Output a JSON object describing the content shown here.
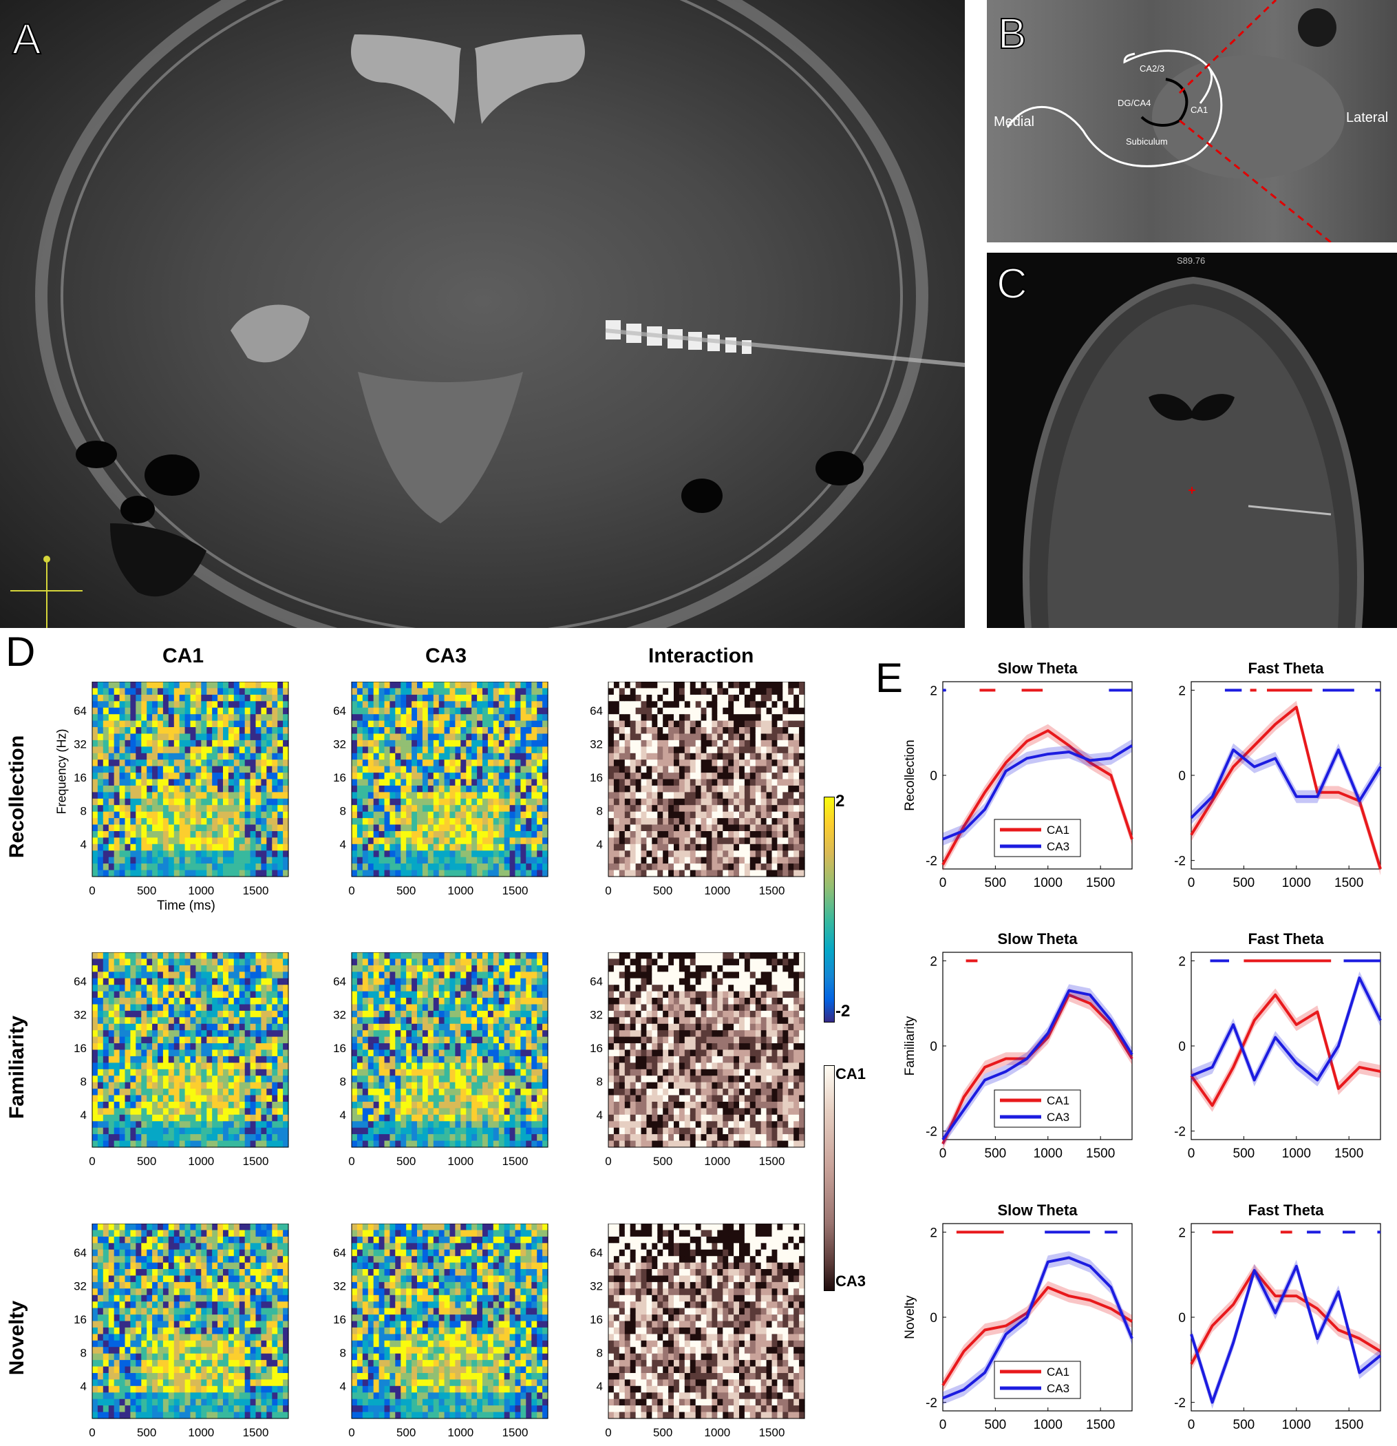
{
  "panels": {
    "A": {
      "letter": "A"
    },
    "B": {
      "letter": "B",
      "labels": {
        "medial": "Medial",
        "lateral": "Lateral",
        "ca23": "CA2/3",
        "dgca4": "DG/CA4",
        "ca1": "CA1",
        "subiculum": "Subiculum"
      }
    },
    "C": {
      "letter": "C",
      "readout": "S89.76"
    },
    "D": {
      "letter": "D"
    },
    "E": {
      "letter": "E"
    }
  },
  "d_panel": {
    "column_titles": [
      "CA1",
      "CA3",
      "Interaction"
    ],
    "row_titles": [
      "Recollection",
      "Familiarity",
      "Novelty"
    ],
    "ylabel": "Frequency (Hz)",
    "xlabel": "Time (ms)",
    "yticks": [
      "64",
      "32",
      "16",
      "8",
      "4"
    ],
    "xticks": [
      "0",
      "500",
      "1000",
      "1500"
    ],
    "colorbar1": {
      "max": "2",
      "min": "-2"
    },
    "colorbar2": {
      "top": "CA1",
      "bottom": "CA3"
    },
    "colors": {
      "parula": [
        "#352a87",
        "#0363e1",
        "#1485d4",
        "#06a7c6",
        "#38b99e",
        "#92bf73",
        "#d9ba56",
        "#fcce2e",
        "#f9fb0e"
      ],
      "pink": [
        "#1e0c0c",
        "#5a3a38",
        "#9a7470",
        "#c9a39a",
        "#e6cfc2",
        "#fffcf3"
      ]
    }
  },
  "chart_data": [
    {
      "type": "line",
      "title": "Slow Theta",
      "ylabel": "Recollection",
      "xlim": [
        0,
        1800
      ],
      "ylim": [
        -2.2,
        2.2
      ],
      "xticks": [
        "0",
        "500",
        "1000",
        "1500"
      ],
      "yticks": [
        "2",
        "0",
        "-2"
      ],
      "legend": [
        "CA1",
        "CA3"
      ],
      "legend_position": "bottom-center",
      "x": [
        0,
        200,
        400,
        600,
        800,
        1000,
        1200,
        1400,
        1600,
        1800
      ],
      "series": [
        {
          "name": "CA1",
          "color": "#e8191c",
          "values": [
            -2.1,
            -1.2,
            -0.4,
            0.3,
            0.8,
            1.05,
            0.7,
            0.3,
            0.0,
            -1.5
          ]
        },
        {
          "name": "CA3",
          "color": "#1c1ce0",
          "values": [
            -1.5,
            -1.3,
            -0.8,
            0.1,
            0.4,
            0.5,
            0.55,
            0.35,
            0.4,
            0.7
          ]
        }
      ],
      "sig_bars": [
        {
          "color": "red",
          "ranges": [
            [
              350,
              500
            ],
            [
              750,
              950
            ]
          ]
        },
        {
          "color": "blue",
          "ranges": [
            [
              0,
              30
            ],
            [
              1580,
              1800
            ]
          ]
        }
      ]
    },
    {
      "type": "line",
      "title": "Fast Theta",
      "ylabel": "",
      "xlim": [
        0,
        1800
      ],
      "ylim": [
        -2.2,
        2.2
      ],
      "xticks": [
        "0",
        "500",
        "1000",
        "1500"
      ],
      "yticks": [
        "2",
        "0",
        "-2"
      ],
      "x": [
        0,
        200,
        400,
        600,
        800,
        1000,
        1200,
        1400,
        1600,
        1800
      ],
      "series": [
        {
          "name": "CA1",
          "color": "#e8191c",
          "values": [
            -1.4,
            -0.6,
            0.2,
            0.7,
            1.2,
            1.6,
            -0.4,
            -0.4,
            -0.6,
            -2.2
          ]
        },
        {
          "name": "CA3",
          "color": "#1c1ce0",
          "values": [
            -1.0,
            -0.5,
            0.6,
            0.2,
            0.4,
            -0.5,
            -0.5,
            0.6,
            -0.6,
            0.2
          ]
        }
      ],
      "sig_bars": [
        {
          "color": "red",
          "ranges": [
            [
              560,
              620
            ],
            [
              720,
              1150
            ]
          ]
        },
        {
          "color": "blue",
          "ranges": [
            [
              320,
              480
            ],
            [
              1250,
              1550
            ],
            [
              1750,
              1800
            ]
          ]
        }
      ]
    },
    {
      "type": "line",
      "title": "Slow Theta",
      "ylabel": "Familiarity",
      "xlim": [
        0,
        1800
      ],
      "ylim": [
        -2.2,
        2.2
      ],
      "xticks": [
        "0",
        "500",
        "1000",
        "1500"
      ],
      "yticks": [
        "2",
        "0",
        "-2"
      ],
      "legend": [
        "CA1",
        "CA3"
      ],
      "legend_position": "bottom-center",
      "x": [
        0,
        200,
        400,
        600,
        800,
        1000,
        1200,
        1400,
        1600,
        1800
      ],
      "series": [
        {
          "name": "CA1",
          "color": "#e8191c",
          "values": [
            -2.3,
            -1.2,
            -0.5,
            -0.3,
            -0.3,
            0.2,
            1.2,
            1.0,
            0.5,
            -0.3
          ]
        },
        {
          "name": "CA3",
          "color": "#1c1ce0",
          "values": [
            -2.2,
            -1.5,
            -0.8,
            -0.6,
            -0.3,
            0.3,
            1.3,
            1.2,
            0.6,
            -0.2
          ]
        }
      ],
      "sig_bars": [
        {
          "color": "red",
          "ranges": [
            [
              220,
              330
            ]
          ]
        }
      ]
    },
    {
      "type": "line",
      "title": "Fast Theta",
      "ylabel": "",
      "xlim": [
        0,
        1800
      ],
      "ylim": [
        -2.2,
        2.2
      ],
      "xticks": [
        "0",
        "500",
        "1000",
        "1500"
      ],
      "yticks": [
        "2",
        "0",
        "-2"
      ],
      "x": [
        0,
        200,
        400,
        600,
        800,
        1000,
        1200,
        1400,
        1600,
        1800
      ],
      "series": [
        {
          "name": "CA1",
          "color": "#e8191c",
          "values": [
            -0.7,
            -1.4,
            -0.5,
            0.6,
            1.2,
            0.5,
            0.8,
            -1.0,
            -0.5,
            -0.6
          ]
        },
        {
          "name": "CA3",
          "color": "#1c1ce0",
          "values": [
            -0.7,
            -0.5,
            0.5,
            -0.8,
            0.2,
            -0.4,
            -0.8,
            0.0,
            1.6,
            0.6
          ]
        }
      ],
      "sig_bars": [
        {
          "color": "red",
          "ranges": [
            [
              500,
              1330
            ]
          ]
        },
        {
          "color": "blue",
          "ranges": [
            [
              180,
              360
            ],
            [
              1450,
              1800
            ]
          ]
        }
      ]
    },
    {
      "type": "line",
      "title": "Slow Theta",
      "ylabel": "Novelty",
      "xlim": [
        0,
        1800
      ],
      "ylim": [
        -2.2,
        2.2
      ],
      "xticks": [
        "0",
        "500",
        "1000",
        "1500"
      ],
      "yticks": [
        "2",
        "0",
        "-2"
      ],
      "legend": [
        "CA1",
        "CA3"
      ],
      "legend_position": "bottom-center",
      "x": [
        0,
        200,
        400,
        600,
        800,
        1000,
        1200,
        1400,
        1600,
        1800
      ],
      "series": [
        {
          "name": "CA1",
          "color": "#e8191c",
          "values": [
            -1.6,
            -0.8,
            -0.3,
            -0.2,
            0.1,
            0.7,
            0.5,
            0.4,
            0.2,
            -0.1
          ]
        },
        {
          "name": "CA3",
          "color": "#1c1ce0",
          "values": [
            -1.9,
            -1.7,
            -1.3,
            -0.4,
            0.0,
            1.3,
            1.4,
            1.2,
            0.7,
            -0.5
          ]
        }
      ],
      "sig_bars": [
        {
          "color": "red",
          "ranges": [
            [
              130,
              580
            ]
          ]
        },
        {
          "color": "blue",
          "ranges": [
            [
              970,
              1400
            ],
            [
              1540,
              1660
            ]
          ]
        }
      ]
    },
    {
      "type": "line",
      "title": "Fast Theta",
      "ylabel": "",
      "xlim": [
        0,
        1800
      ],
      "ylim": [
        -2.2,
        2.2
      ],
      "xticks": [
        "0",
        "500",
        "1000",
        "1500"
      ],
      "yticks": [
        "2",
        "0",
        "-2"
      ],
      "x": [
        0,
        200,
        400,
        600,
        800,
        1000,
        1200,
        1400,
        1600,
        1800
      ],
      "series": [
        {
          "name": "CA1",
          "color": "#e8191c",
          "values": [
            -1.1,
            -0.2,
            0.3,
            1.1,
            0.5,
            0.5,
            0.2,
            -0.3,
            -0.5,
            -0.8
          ]
        },
        {
          "name": "CA3",
          "color": "#1c1ce0",
          "values": [
            -0.4,
            -2.0,
            -0.6,
            1.1,
            0.1,
            1.2,
            -0.5,
            0.6,
            -1.3,
            -0.9
          ]
        }
      ],
      "sig_bars": [
        {
          "color": "red",
          "ranges": [
            [
              200,
              400
            ],
            [
              850,
              960
            ]
          ]
        },
        {
          "color": "blue",
          "ranges": [
            [
              1100,
              1230
            ],
            [
              1440,
              1560
            ],
            [
              1770,
              1800
            ]
          ]
        }
      ]
    }
  ]
}
